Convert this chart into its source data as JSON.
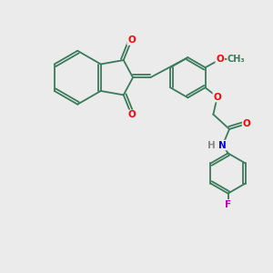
{
  "background_color": "#ebebeb",
  "bond_color": "#3a7a5a",
  "bond_width": 1.3,
  "atom_colors": {
    "O": "#ff0000",
    "N": "#0000ee",
    "F": "#bb00bb",
    "H": "#888888",
    "C": "#3a7a5a"
  },
  "font_size": 7.5
}
